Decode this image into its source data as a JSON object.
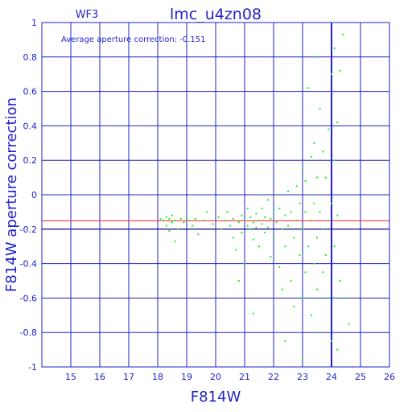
{
  "chart_data": {
    "type": "scatter",
    "title": "lmc_u4zn08",
    "panel_label": "WF3",
    "annotation": "Average aperture correction: -0.151",
    "xlabel": "F814W",
    "ylabel": "F814W aperture correction",
    "xlim": [
      14,
      26
    ],
    "ylim": [
      -1,
      1
    ],
    "x_ticks": [
      "15",
      "16",
      "17",
      "18",
      "19",
      "20",
      "21",
      "22",
      "23",
      "24",
      "25",
      "26"
    ],
    "y_ticks": [
      "-1",
      "-0.8",
      "-0.6",
      "-0.4",
      "-0.2",
      "0",
      "0.2",
      "0.4",
      "0.6",
      "0.8",
      "1"
    ],
    "reference_lines": [
      {
        "y": -0.151,
        "color": "#ff2020"
      },
      {
        "y": -0.2,
        "color": "#000080"
      }
    ],
    "vertical_line": {
      "x": 24,
      "color": "#2020d0"
    },
    "grid": true,
    "marker_color": "#22ee22",
    "frame_color": "#2020c0",
    "points": [
      [
        18.1,
        -0.14
      ],
      [
        18.2,
        -0.15
      ],
      [
        18.3,
        -0.13
      ],
      [
        18.3,
        -0.18
      ],
      [
        18.4,
        -0.21
      ],
      [
        18.4,
        -0.14
      ],
      [
        18.5,
        -0.16
      ],
      [
        18.5,
        -0.12
      ],
      [
        18.6,
        -0.15
      ],
      [
        18.6,
        -0.27
      ],
      [
        18.7,
        -0.2
      ],
      [
        18.8,
        -0.14
      ],
      [
        18.9,
        -0.16
      ],
      [
        19.0,
        -0.13
      ],
      [
        19.1,
        -0.15
      ],
      [
        19.2,
        -0.18
      ],
      [
        19.3,
        -0.14
      ],
      [
        19.4,
        -0.23
      ],
      [
        19.6,
        -0.15
      ],
      [
        19.7,
        -0.1
      ],
      [
        19.9,
        -0.17
      ],
      [
        20.1,
        -0.13
      ],
      [
        20.2,
        -0.2
      ],
      [
        20.3,
        -0.15
      ],
      [
        20.4,
        -0.1
      ],
      [
        20.5,
        -0.18
      ],
      [
        20.6,
        -0.14
      ],
      [
        20.6,
        -0.25
      ],
      [
        20.7,
        -0.32
      ],
      [
        20.8,
        -0.16
      ],
      [
        20.9,
        -0.12
      ],
      [
        20.9,
        -0.22
      ],
      [
        21.0,
        -0.15
      ],
      [
        21.0,
        -0.4
      ],
      [
        21.1,
        -0.18
      ],
      [
        21.1,
        -0.08
      ],
      [
        21.2,
        -0.2
      ],
      [
        21.2,
        -0.13
      ],
      [
        21.3,
        -0.26
      ],
      [
        21.3,
        -0.16
      ],
      [
        21.4,
        -0.11
      ],
      [
        21.4,
        -0.19
      ],
      [
        21.5,
        -0.15
      ],
      [
        21.5,
        -0.3
      ],
      [
        21.6,
        -0.08
      ],
      [
        21.6,
        -0.17
      ],
      [
        21.7,
        -0.22
      ],
      [
        21.7,
        -0.13
      ],
      [
        21.8,
        -0.03
      ],
      [
        21.8,
        -0.19
      ],
      [
        21.9,
        -0.36
      ],
      [
        21.9,
        -0.14
      ],
      [
        22.0,
        -0.1
      ],
      [
        22.0,
        -0.25
      ],
      [
        22.1,
        0.0
      ],
      [
        22.1,
        -0.16
      ],
      [
        22.2,
        -0.42
      ],
      [
        22.2,
        -0.08
      ],
      [
        22.3,
        -0.2
      ],
      [
        22.3,
        -0.55
      ],
      [
        22.4,
        -0.12
      ],
      [
        22.4,
        -0.3
      ],
      [
        22.5,
        0.02
      ],
      [
        22.5,
        -0.18
      ],
      [
        22.6,
        -0.5
      ],
      [
        22.6,
        -0.1
      ],
      [
        22.7,
        -0.25
      ],
      [
        22.7,
        -0.65
      ],
      [
        22.8,
        -0.15
      ],
      [
        22.8,
        0.05
      ],
      [
        22.9,
        -0.35
      ],
      [
        22.9,
        -0.05
      ],
      [
        23.0,
        0.15
      ],
      [
        23.0,
        -0.2
      ],
      [
        23.0,
        -0.6
      ],
      [
        23.1,
        0.08
      ],
      [
        23.1,
        -0.1
      ],
      [
        23.1,
        -0.45
      ],
      [
        23.2,
        -0.3
      ],
      [
        23.2,
        0.0
      ],
      [
        23.3,
        0.22
      ],
      [
        23.3,
        -0.15
      ],
      [
        23.3,
        -0.7
      ],
      [
        23.4,
        0.3
      ],
      [
        23.4,
        -0.05
      ],
      [
        23.4,
        -0.4
      ],
      [
        23.5,
        0.1
      ],
      [
        23.5,
        -0.25
      ],
      [
        23.5,
        -0.55
      ],
      [
        23.6,
        0.5
      ],
      [
        23.6,
        -0.1
      ],
      [
        23.6,
        -0.8
      ],
      [
        23.7,
        0.25
      ],
      [
        23.7,
        -0.2
      ],
      [
        23.7,
        -0.45
      ],
      [
        23.8,
        0.1
      ],
      [
        23.8,
        -0.35
      ],
      [
        23.9,
        0.38
      ],
      [
        23.9,
        -0.15
      ],
      [
        23.9,
        -0.6
      ],
      [
        24.0,
        0.7
      ],
      [
        24.0,
        -0.05
      ],
      [
        24.0,
        -0.85
      ],
      [
        24.1,
        0.85
      ],
      [
        24.1,
        0.2
      ],
      [
        24.1,
        -0.3
      ],
      [
        24.2,
        -0.12
      ],
      [
        24.2,
        0.42
      ],
      [
        24.3,
        -0.5
      ],
      [
        24.4,
        0.93
      ],
      [
        23.2,
        0.62
      ],
      [
        23.5,
        0.8
      ],
      [
        24.3,
        0.72
      ],
      [
        24.5,
        -0.6
      ],
      [
        24.6,
        -0.75
      ],
      [
        21.3,
        -0.69
      ],
      [
        20.8,
        -0.5
      ],
      [
        22.4,
        -0.85
      ],
      [
        23.0,
        -0.95
      ],
      [
        24.2,
        -0.9
      ]
    ]
  }
}
